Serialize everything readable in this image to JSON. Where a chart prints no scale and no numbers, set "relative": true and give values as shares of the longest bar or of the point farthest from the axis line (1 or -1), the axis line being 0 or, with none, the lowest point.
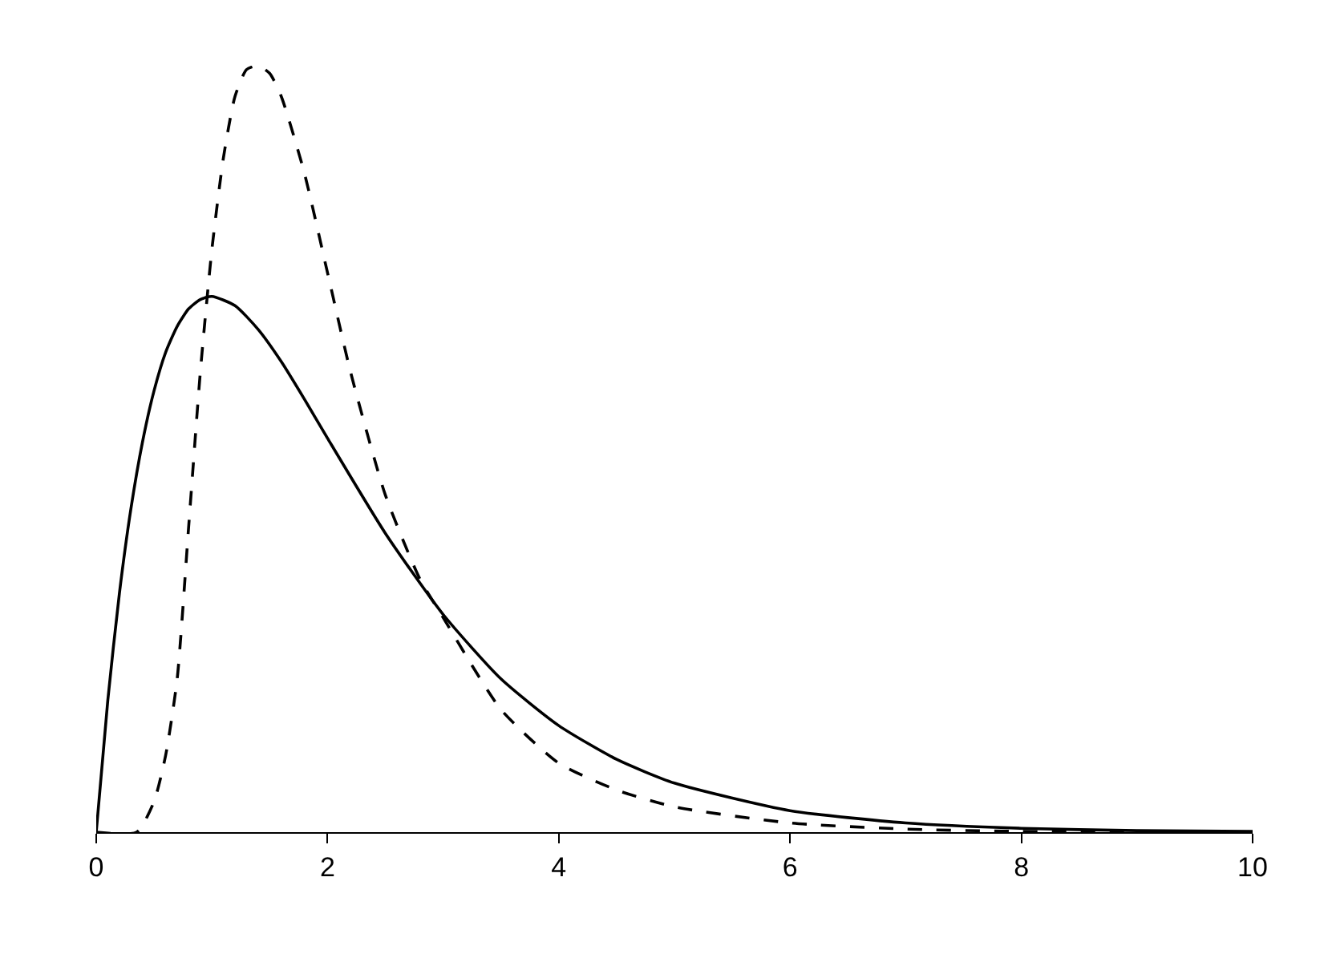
{
  "chart_data": {
    "type": "line",
    "relative": true,
    "xlim": [
      0,
      10
    ],
    "xticks": [
      0,
      2,
      4,
      6,
      8,
      10
    ],
    "series": [
      {
        "color": "#000000",
        "line_style": "solid",
        "x": [
          0,
          0.1,
          0.2,
          0.3,
          0.4,
          0.5,
          0.6,
          0.7,
          0.8,
          0.9,
          1.0,
          1.2,
          1.4,
          1.6,
          1.8,
          2.0,
          2.5,
          3.0,
          3.5,
          4.0,
          4.5,
          5,
          6,
          7,
          8,
          9,
          10
        ],
        "values": [
          0,
          0.172,
          0.311,
          0.422,
          0.509,
          0.576,
          0.626,
          0.66,
          0.683,
          0.695,
          0.699,
          0.687,
          0.656,
          0.614,
          0.565,
          0.514,
          0.39,
          0.284,
          0.2,
          0.139,
          0.095,
          0.064,
          0.028,
          0.012,
          0.005,
          0.002,
          0.001
        ]
      },
      {
        "color": "#000000",
        "line_style": "dashed",
        "x": [
          0,
          0.35,
          0.5,
          0.6,
          0.7,
          0.8,
          0.9,
          1.0,
          1.1,
          1.2,
          1.3,
          1.4,
          1.5,
          1.6,
          1.8,
          2.0,
          2.2,
          2.5,
          2.8,
          3.0,
          3.5,
          4.0,
          4.5,
          5,
          6,
          7,
          8,
          10
        ],
        "values": [
          0,
          0,
          0.04,
          0.1,
          0.2,
          0.4,
          0.6,
          0.76,
          0.88,
          0.96,
          0.995,
          1,
          0.99,
          0.96,
          0.86,
          0.73,
          0.6,
          0.44,
          0.33,
          0.28,
          0.16,
          0.09,
          0.055,
          0.033,
          0.012,
          0.004,
          0.001,
          0
        ]
      }
    ]
  }
}
